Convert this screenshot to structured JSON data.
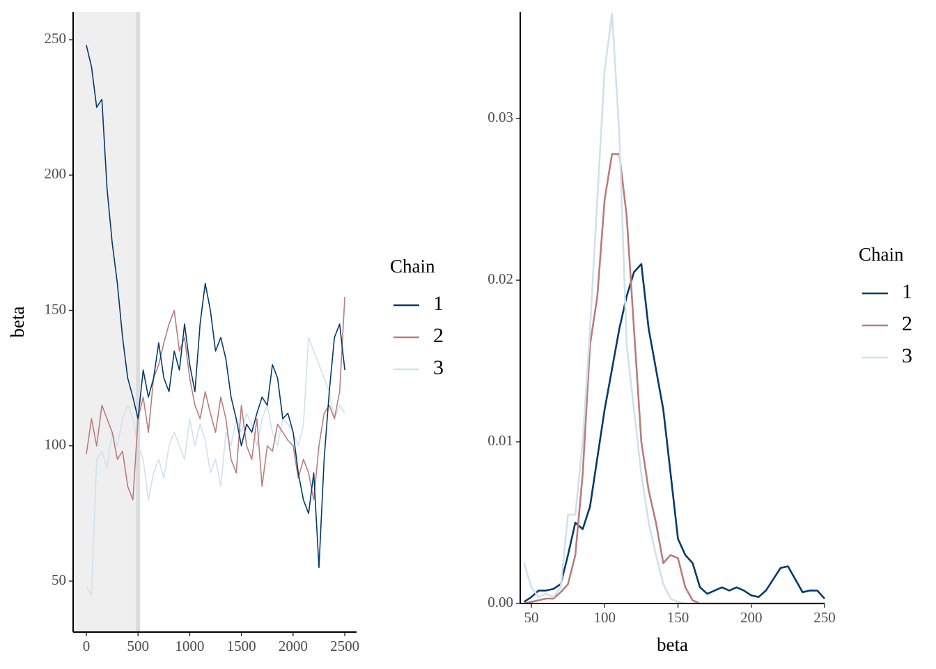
{
  "chart_data": [
    {
      "type": "line",
      "y_label": "beta",
      "legend_title": "Chain",
      "legend": "right",
      "grid": false,
      "warmup": 500,
      "warmup_color": "#efefef",
      "x": [
        0,
        50,
        100,
        150,
        200,
        250,
        300,
        350,
        400,
        450,
        500,
        550,
        600,
        650,
        700,
        750,
        800,
        850,
        900,
        950,
        1000,
        1050,
        1100,
        1150,
        1200,
        1250,
        1300,
        1350,
        1400,
        1450,
        1500,
        1550,
        1600,
        1650,
        1700,
        1750,
        1800,
        1850,
        1900,
        1950,
        2000,
        2050,
        2100,
        2150,
        2200,
        2250,
        2300,
        2350,
        2400,
        2450,
        2500
      ],
      "xlim": [
        -128,
        2614
      ],
      "xticks": [
        0,
        500,
        1000,
        1500,
        2000,
        2500
      ],
      "ylim": [
        31.2,
        260.3
      ],
      "yticks": [
        50,
        100,
        150,
        200,
        250
      ],
      "series": [
        {
          "name": "1",
          "color": "#03396c",
          "values": [
            248,
            240,
            225,
            228,
            195,
            175,
            160,
            140,
            125,
            118,
            110,
            128,
            118,
            125,
            138,
            125,
            120,
            135,
            128,
            145,
            130,
            120,
            145,
            160,
            150,
            135,
            140,
            132,
            118,
            110,
            100,
            108,
            105,
            112,
            118,
            115,
            130,
            125,
            110,
            112,
            105,
            90,
            80,
            75,
            90,
            55,
            95,
            120,
            140,
            145,
            128
          ]
        },
        {
          "name": "2",
          "color": "#b97c7c",
          "values": [
            97,
            110,
            100,
            115,
            110,
            105,
            95,
            98,
            85,
            80,
            110,
            118,
            105,
            125,
            130,
            138,
            145,
            150,
            135,
            140,
            125,
            115,
            110,
            120,
            112,
            105,
            118,
            110,
            95,
            90,
            115,
            100,
            95,
            110,
            85,
            100,
            98,
            108,
            105,
            102,
            100,
            88,
            95,
            90,
            80,
            100,
            112,
            115,
            110,
            120,
            155
          ]
        },
        {
          "name": "3",
          "color": "#d1e1ec",
          "values": [
            48,
            45,
            95,
            98,
            92,
            105,
            100,
            110,
            115,
            110,
            100,
            95,
            80,
            90,
            95,
            88,
            100,
            105,
            100,
            95,
            110,
            100,
            108,
            102,
            90,
            95,
            85,
            105,
            100,
            110,
            105,
            112,
            108,
            100,
            110,
            115,
            105,
            100,
            110,
            108,
            105,
            100,
            108,
            140,
            135,
            130,
            125,
            120,
            110,
            115,
            112
          ]
        }
      ]
    },
    {
      "type": "density",
      "x_label": "beta",
      "legend_title": "Chain",
      "legend": "right",
      "grid": false,
      "x": [
        45,
        50,
        55,
        60,
        65,
        70,
        75,
        80,
        85,
        90,
        95,
        100,
        105,
        110,
        115,
        120,
        125,
        130,
        135,
        140,
        145,
        150,
        155,
        160,
        165,
        170,
        175,
        180,
        185,
        190,
        195,
        200,
        205,
        210,
        215,
        220,
        225,
        230,
        235,
        240,
        245,
        250
      ],
      "xlim": [
        42.4,
        250
      ],
      "xticks": [
        50,
        100,
        150,
        200,
        250
      ],
      "ylim": [
        0,
        0.0366
      ],
      "yticks": [
        {
          "value": 0,
          "label": "0.00"
        },
        0.01,
        0.02,
        0.03
      ],
      "series": [
        {
          "name": "1",
          "color": "#03396c",
          "values": [
            0.0001,
            0.0004,
            0.0008,
            0.0008,
            0.0009,
            0.0012,
            0.003,
            0.005,
            0.0046,
            0.006,
            0.009,
            0.012,
            0.0145,
            0.017,
            0.019,
            0.0205,
            0.021,
            0.017,
            0.0145,
            0.012,
            0.008,
            0.004,
            0.003,
            0.0025,
            0.001,
            0.0006,
            0.0008,
            0.001,
            0.0008,
            0.001,
            0.0008,
            0.0005,
            0.0004,
            0.0008,
            0.0015,
            0.0022,
            0.0023,
            0.0015,
            0.0007,
            0.0008,
            0.0008,
            0.0003
          ]
        },
        {
          "name": "2",
          "color": "#b97c7c",
          "values": [
            0,
            0.0001,
            0.0002,
            0.0003,
            0.0003,
            0.0007,
            0.0012,
            0.003,
            0.008,
            0.016,
            0.019,
            0.025,
            0.0278,
            0.0278,
            0.024,
            0.017,
            0.01,
            0.007,
            0.005,
            0.0025,
            0.003,
            0.0028,
            0.001,
            0.0002,
            0,
            0,
            0,
            0,
            0,
            0,
            0,
            0,
            0,
            0,
            0,
            0,
            0,
            0,
            0,
            0,
            0,
            0
          ]
        },
        {
          "name": "3",
          "color": "#d1e1ec",
          "values": [
            0.0025,
            0.001,
            0.0004,
            0.0006,
            0.0004,
            0.001,
            0.0055,
            0.0055,
            0.01,
            0.017,
            0.025,
            0.033,
            0.0365,
            0.029,
            0.016,
            0.012,
            0.008,
            0.005,
            0.003,
            0.0012,
            0.0003,
            0.0001,
            0,
            0,
            0,
            0,
            0,
            0,
            0,
            0,
            0,
            0,
            0,
            0,
            0,
            0,
            0,
            0,
            0,
            0,
            0,
            0
          ]
        }
      ]
    }
  ]
}
